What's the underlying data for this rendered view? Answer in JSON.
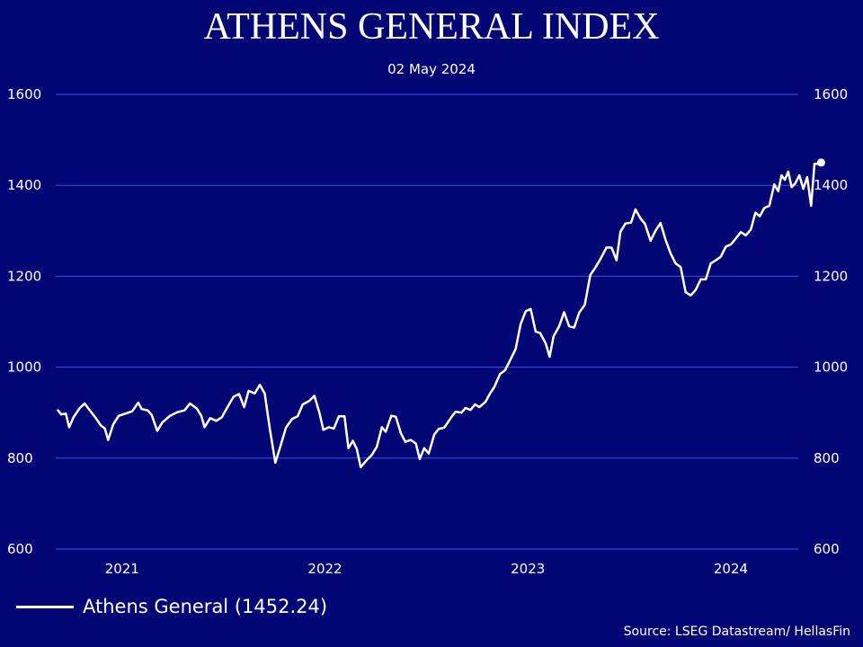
{
  "chart_data": {
    "type": "line",
    "title": "ATHENS GENERAL INDEX",
    "subtitle": "02 May 2024",
    "ylim": [
      600,
      1600
    ],
    "yticks": [
      600,
      800,
      1000,
      1200,
      1400,
      1600
    ],
    "y_axis_both_sides": true,
    "grid": "horizontal",
    "xlim": [
      "2020-09-21",
      "2024-05-15"
    ],
    "xticks": [
      {
        "label": "2021",
        "date": "2021-01-18"
      },
      {
        "label": "2022",
        "date": "2022-01-17"
      },
      {
        "label": "2023",
        "date": "2023-01-16"
      },
      {
        "label": "2024",
        "date": "2024-01-15"
      }
    ],
    "series": [
      {
        "name": "Athens General (1452.24)",
        "color": "#ffffff",
        "last_point_marker": true,
        "points": [
          [
            "2020-09-25",
            905
          ],
          [
            "2020-10-01",
            896
          ],
          [
            "2020-10-09",
            898
          ],
          [
            "2020-10-15",
            868
          ],
          [
            "2020-10-23",
            890
          ],
          [
            "2020-11-03",
            910
          ],
          [
            "2020-11-12",
            920
          ],
          [
            "2020-11-20",
            907
          ],
          [
            "2020-12-02",
            888
          ],
          [
            "2020-12-11",
            872
          ],
          [
            "2020-12-18",
            865
          ],
          [
            "2020-12-24",
            840
          ],
          [
            "2021-01-02",
            874
          ],
          [
            "2021-01-12",
            893
          ],
          [
            "2021-01-22",
            897
          ],
          [
            "2021-02-05",
            903
          ],
          [
            "2021-02-16",
            922
          ],
          [
            "2021-02-22",
            908
          ],
          [
            "2021-03-05",
            905
          ],
          [
            "2021-03-12",
            895
          ],
          [
            "2021-03-22",
            860
          ],
          [
            "2021-03-31",
            878
          ],
          [
            "2021-04-14",
            893
          ],
          [
            "2021-04-27",
            901
          ],
          [
            "2021-05-10",
            905
          ],
          [
            "2021-05-20",
            920
          ],
          [
            "2021-06-01",
            909
          ],
          [
            "2021-06-09",
            893
          ],
          [
            "2021-06-15",
            868
          ],
          [
            "2021-06-25",
            888
          ],
          [
            "2021-07-06",
            882
          ],
          [
            "2021-07-16",
            890
          ],
          [
            "2021-07-26",
            912
          ],
          [
            "2021-08-06",
            935
          ],
          [
            "2021-08-16",
            941
          ],
          [
            "2021-08-25",
            912
          ],
          [
            "2021-09-02",
            948
          ],
          [
            "2021-09-13",
            942
          ],
          [
            "2021-09-22",
            961
          ],
          [
            "2021-10-01",
            942
          ],
          [
            "2021-10-10",
            865
          ],
          [
            "2021-10-20",
            790
          ],
          [
            "2021-10-28",
            822
          ],
          [
            "2021-11-08",
            867
          ],
          [
            "2021-11-19",
            886
          ],
          [
            "2021-11-29",
            892
          ],
          [
            "2021-12-08",
            918
          ],
          [
            "2021-12-20",
            926
          ],
          [
            "2021-12-29",
            937
          ],
          [
            "2022-01-07",
            900
          ],
          [
            "2022-01-14",
            862
          ],
          [
            "2022-01-24",
            868
          ],
          [
            "2022-02-02",
            865
          ],
          [
            "2022-02-11",
            892
          ],
          [
            "2022-02-21",
            892
          ],
          [
            "2022-02-28",
            822
          ],
          [
            "2022-03-08",
            838
          ],
          [
            "2022-03-15",
            820
          ],
          [
            "2022-03-22",
            780
          ],
          [
            "2022-03-31",
            793
          ],
          [
            "2022-04-11",
            807
          ],
          [
            "2022-04-20",
            825
          ],
          [
            "2022-04-29",
            868
          ],
          [
            "2022-05-06",
            858
          ],
          [
            "2022-05-16",
            893
          ],
          [
            "2022-05-24",
            891
          ],
          [
            "2022-06-02",
            855
          ],
          [
            "2022-06-10",
            836
          ],
          [
            "2022-06-20",
            840
          ],
          [
            "2022-06-29",
            832
          ],
          [
            "2022-07-06",
            798
          ],
          [
            "2022-07-14",
            822
          ],
          [
            "2022-07-22",
            810
          ],
          [
            "2022-08-01",
            852
          ],
          [
            "2022-08-09",
            864
          ],
          [
            "2022-08-19",
            867
          ],
          [
            "2022-08-31",
            889
          ],
          [
            "2022-09-08",
            902
          ],
          [
            "2022-09-19",
            900
          ],
          [
            "2022-09-26",
            910
          ],
          [
            "2022-10-05",
            906
          ],
          [
            "2022-10-13",
            918
          ],
          [
            "2022-10-21",
            912
          ],
          [
            "2022-11-01",
            924
          ],
          [
            "2022-11-09",
            942
          ],
          [
            "2022-11-17",
            957
          ],
          [
            "2022-11-27",
            985
          ],
          [
            "2022-12-06",
            993
          ],
          [
            "2022-12-15",
            1015
          ],
          [
            "2022-12-25",
            1040
          ],
          [
            "2023-01-03",
            1095
          ],
          [
            "2023-01-12",
            1123
          ],
          [
            "2023-01-21",
            1128
          ],
          [
            "2023-01-30",
            1078
          ],
          [
            "2023-02-07",
            1075
          ],
          [
            "2023-02-17",
            1052
          ],
          [
            "2023-02-24",
            1023
          ],
          [
            "2023-03-03",
            1068
          ],
          [
            "2023-03-13",
            1090
          ],
          [
            "2023-03-22",
            1121
          ],
          [
            "2023-03-31",
            1090
          ],
          [
            "2023-04-09",
            1087
          ],
          [
            "2023-04-18",
            1120
          ],
          [
            "2023-04-28",
            1137
          ],
          [
            "2023-05-08",
            1203
          ],
          [
            "2023-05-18",
            1221
          ],
          [
            "2023-05-27",
            1240
          ],
          [
            "2023-06-06",
            1263
          ],
          [
            "2023-06-15",
            1263
          ],
          [
            "2023-06-24",
            1235
          ],
          [
            "2023-07-01",
            1298
          ],
          [
            "2023-07-10",
            1316
          ],
          [
            "2023-07-20",
            1318
          ],
          [
            "2023-07-28",
            1347
          ],
          [
            "2023-08-06",
            1327
          ],
          [
            "2023-08-14",
            1315
          ],
          [
            "2023-08-24",
            1278
          ],
          [
            "2023-09-02",
            1300
          ],
          [
            "2023-09-11",
            1317
          ],
          [
            "2023-09-20",
            1280
          ],
          [
            "2023-09-29",
            1250
          ],
          [
            "2023-10-08",
            1228
          ],
          [
            "2023-10-17",
            1220
          ],
          [
            "2023-10-26",
            1165
          ],
          [
            "2023-11-04",
            1158
          ],
          [
            "2023-11-13",
            1170
          ],
          [
            "2023-11-22",
            1193
          ],
          [
            "2023-12-01",
            1193
          ],
          [
            "2023-12-10",
            1228
          ],
          [
            "2023-12-19",
            1235
          ],
          [
            "2023-12-28",
            1243
          ],
          [
            "2024-01-06",
            1265
          ],
          [
            "2024-01-15",
            1270
          ],
          [
            "2024-01-24",
            1283
          ],
          [
            "2024-02-02",
            1297
          ],
          [
            "2024-02-11",
            1290
          ],
          [
            "2024-02-20",
            1303
          ],
          [
            "2024-02-28",
            1340
          ],
          [
            "2024-03-07",
            1332
          ],
          [
            "2024-03-15",
            1350
          ],
          [
            "2024-03-24",
            1355
          ],
          [
            "2024-04-02",
            1402
          ],
          [
            "2024-04-09",
            1387
          ],
          [
            "2024-04-15",
            1422
          ],
          [
            "2024-04-21",
            1412
          ],
          [
            "2024-04-27",
            1430
          ],
          [
            "2024-05-03",
            1396
          ],
          [
            "2024-05-10",
            1405
          ],
          [
            "2024-05-17",
            1422
          ],
          [
            "2024-05-24",
            1392
          ],
          [
            "2024-05-31",
            1418
          ],
          [
            "2024-06-07",
            1355
          ],
          [
            "2024-06-13",
            1447
          ],
          [
            "2024-06-19",
            1447
          ],
          [
            "2024-06-25",
            1450
          ]
        ]
      }
    ]
  },
  "legend": {
    "label": "Athens General (1452.24)"
  },
  "source": "Source: LSEG Datastream/ HellasFin"
}
